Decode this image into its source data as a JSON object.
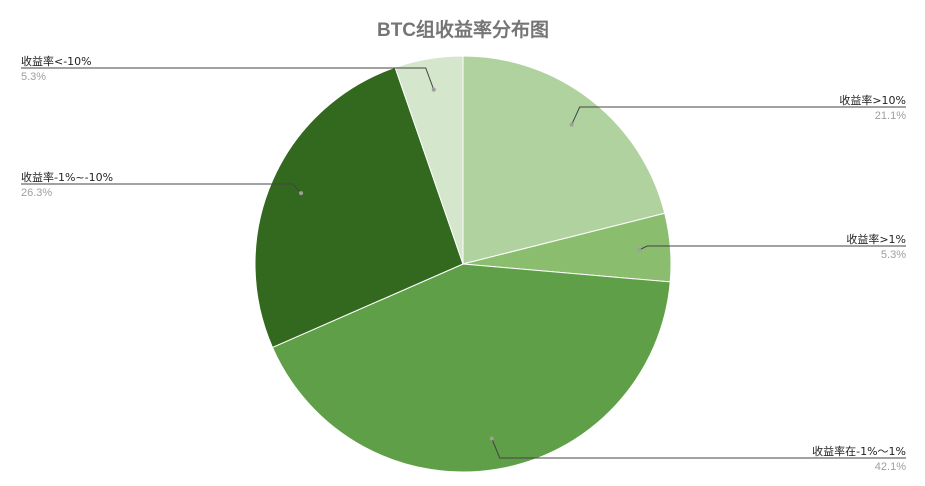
{
  "chart_data": {
    "type": "pie",
    "title": "BTC组收益率分布图",
    "start_angle_deg": 0,
    "direction": "clockwise",
    "slices": [
      {
        "label": "收益率>10%",
        "value": 21.1,
        "pct_label": "21.1%",
        "color": "#b0d29f"
      },
      {
        "label": "收益率>1%",
        "value": 5.3,
        "pct_label": "5.3%",
        "color": "#8bbd6f"
      },
      {
        "label": "收益率在-1%～1%",
        "value": 42.1,
        "pct_label": "42.1%",
        "color": "#5f9f47"
      },
      {
        "label": "收益率-1%~-10%",
        "value": 26.3,
        "pct_label": "26.3%",
        "color": "#32691e"
      },
      {
        "label": "收益率<-10%",
        "value": 5.3,
        "pct_label": "5.3%",
        "color": "#d4e6cb"
      }
    ]
  }
}
